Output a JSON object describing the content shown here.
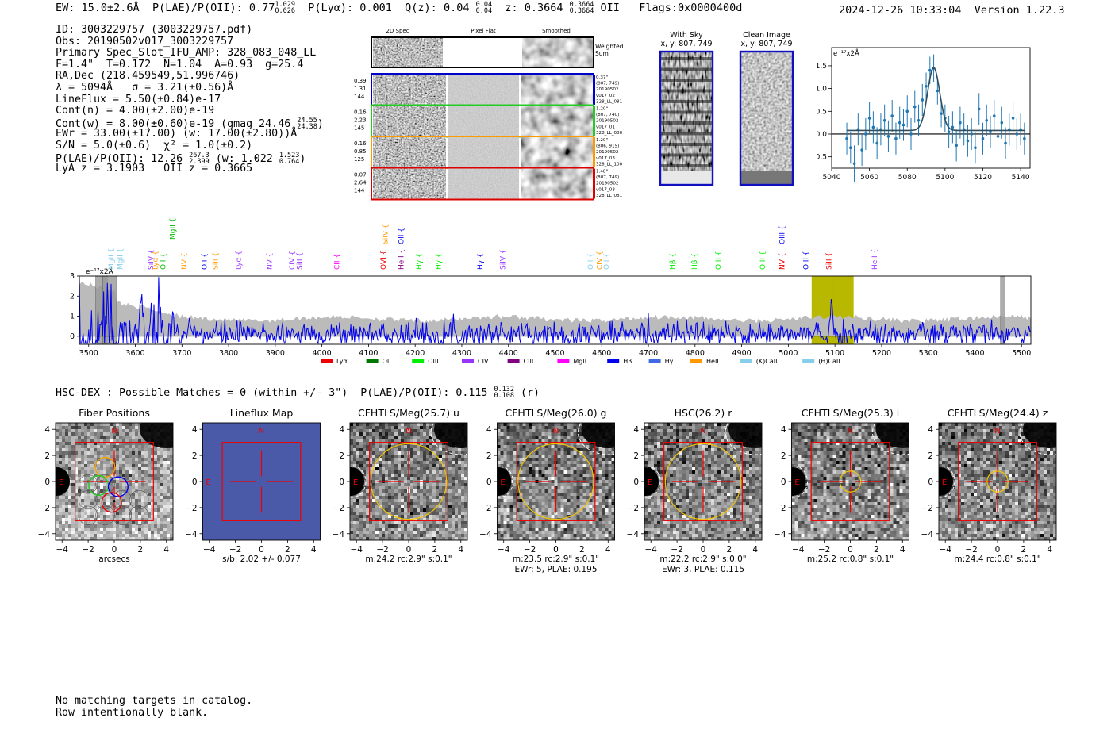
{
  "header": {
    "ew": "EW: 15.0±2.6Å",
    "plae_label": "P(LAE)/P(OII): 0.77",
    "plae_hi": "1.029",
    "plae_lo": "0.626",
    "plya": "P(Lyα): 0.001",
    "qz_label": "Q(z): 0.04",
    "qz_hi": "0.04",
    "qz_lo": "0.04",
    "z_label": "z: 0.3664",
    "z_hi": "0.3664",
    "z_lo": "0.3664",
    "z_line": "OII",
    "flags": "Flags:0x0000400d",
    "datetime": "2024-12-26 10:33:04",
    "version": "Version 1.22.3"
  },
  "info": {
    "id": "ID: 3003229757 (3003229757.pdf)",
    "obs": "Obs: 20190502v017_3003229757",
    "primary": "Primary Spec_Slot_IFU_AMP: 328_083_048_LL",
    "fiber": "F=1.4\"  T=0.172  N=1.04  A=0.93  g=25.4",
    "radec": "RA,Dec (218.459549,51.996746)",
    "lambda": "λ = 5094Å   σ = 3.21(±0.56)Å",
    "lineflux": "LineFlux = 5.50(±0.84)e-17",
    "contn": "Cont(n) = 4.00(±2.00)e-19",
    "contw": "Cont(w) = 8.00(±0.60)e-19 (gmag 24.46",
    "contw_hi": "24.55",
    "contw_lo": "24.38",
    "ewr": "EWr = 33.00(±17.00) (w: 17.00(±2.80))Å",
    "sn": "S/N = 5.0(±0.6)  χ² = 1.0(±0.2)",
    "plae": "P(LAE)/P(OII): 12.26",
    "plae_hi": "267.3",
    "plae_lo": "2.399",
    "plae_w": "(w: 1.022",
    "plae_w_hi": "1.523",
    "plae_w_lo": "0.764",
    "lya_z": "LyA z = 3.1903   OII z = 0.3665"
  },
  "cutouts": {
    "col_labels": [
      "2D Spec",
      "Pixel Flat",
      "Smoothed"
    ],
    "weighted_sum": [
      "Weighted",
      "Sum"
    ],
    "rows": [
      {
        "side": [
          "0.39",
          "1.31",
          "144"
        ],
        "info": [
          "0.37\"",
          "(807, 749)",
          "20190502",
          "v017_02",
          "328_LL_081"
        ],
        "color": "#0000cc"
      },
      {
        "side": [
          "0.16",
          "2.23",
          "145"
        ],
        "info": [
          "1.20\"",
          "(807, 740)",
          "20190502",
          "v017_01",
          "328_LL_080"
        ],
        "color": "#22cc22"
      },
      {
        "side": [
          "0.16",
          "0.85",
          "125"
        ],
        "info": [
          "1.20\"",
          "(806, 915)",
          "20190502",
          "v017_03",
          "328_LL_100"
        ],
        "color": "#ff9900"
      },
      {
        "side": [
          "0.07",
          "2.64",
          "144"
        ],
        "info": [
          "1.48\"",
          "(807, 749)",
          "20190502",
          "v017_03",
          "328_LL_081"
        ],
        "color": "#dd0000"
      }
    ]
  },
  "sky": {
    "with_sky_title": "With Sky",
    "with_sky_xy": "x, y: 807, 749",
    "clean_title": "Clean Image",
    "clean_xy": "x, y: 807, 749"
  },
  "chart_data": [
    {
      "type": "line",
      "title": "",
      "units": "e⁻¹⁷x2Å",
      "xlim": [
        5040,
        5145
      ],
      "ylim": [
        -0.75,
        1.9
      ],
      "xticks": [
        5040,
        5060,
        5080,
        5100,
        5120,
        5140
      ],
      "yticks": [
        -0.5,
        0.0,
        0.5,
        1.0,
        1.5
      ],
      "series": [
        {
          "name": "data",
          "x": [
            5048,
            5050,
            5052,
            5054,
            5056,
            5058,
            5060,
            5062,
            5064,
            5066,
            5068,
            5070,
            5072,
            5074,
            5076,
            5078,
            5080,
            5082,
            5084,
            5086,
            5088,
            5090,
            5092,
            5094,
            5096,
            5098,
            5100,
            5102,
            5104,
            5106,
            5108,
            5110,
            5112,
            5114,
            5116,
            5118,
            5120,
            5122,
            5124,
            5126,
            5128,
            5130,
            5132,
            5134,
            5136,
            5138,
            5140,
            5142
          ],
          "y": [
            -0.1,
            -0.3,
            -0.65,
            0.1,
            -0.35,
            0.0,
            0.35,
            0.15,
            -0.2,
            0.1,
            0.3,
            -0.05,
            0.4,
            -0.1,
            0.25,
            0.2,
            0.5,
            0.0,
            0.6,
            0.3,
            0.75,
            1.05,
            1.4,
            1.45,
            0.95,
            0.45,
            0.35,
            0.05,
            0.15,
            -0.25,
            0.25,
            0.1,
            -0.15,
            0.0,
            -0.3,
            0.55,
            -0.1,
            0.3,
            0.05,
            0.4,
            -0.05,
            0.25,
            -0.2,
            0.1,
            0.35,
            0.0,
            0.1,
            -0.1
          ],
          "err": [
            0.35,
            0.35,
            0.4,
            0.35,
            0.35,
            0.35,
            0.35,
            0.35,
            0.35,
            0.35,
            0.35,
            0.35,
            0.35,
            0.35,
            0.35,
            0.35,
            0.35,
            0.35,
            0.35,
            0.35,
            0.35,
            0.3,
            0.3,
            0.3,
            0.3,
            0.3,
            0.3,
            0.35,
            0.35,
            0.35,
            0.35,
            0.35,
            0.35,
            0.35,
            0.35,
            0.35,
            0.35,
            0.35,
            0.35,
            0.35,
            0.35,
            0.35,
            0.35,
            0.35,
            0.35,
            0.35,
            0.35,
            0.35
          ]
        },
        {
          "name": "fit",
          "center": 5094,
          "amp": 1.38,
          "sigma": 3.21,
          "baseline": 0.08
        }
      ]
    },
    {
      "type": "line",
      "title": "",
      "units": "e⁻¹⁷x2Å",
      "xlim": [
        3480,
        5520
      ],
      "ylim": [
        -0.4,
        3.0
      ],
      "xticks": [
        3500,
        3600,
        3700,
        3800,
        3900,
        4000,
        4100,
        4200,
        4300,
        4400,
        4500,
        4600,
        4700,
        4800,
        4900,
        5000,
        5100,
        5200,
        5300,
        5400,
        5500
      ],
      "yticks": [
        0,
        1,
        2,
        3
      ],
      "highlight": {
        "from": 5050,
        "to": 5140,
        "center": 5094
      },
      "masked": [
        [
          3515,
          3540
        ],
        [
          3530,
          3560
        ],
        [
          5455,
          5465
        ]
      ],
      "legend": [
        "Lyα",
        "OII",
        "OIII",
        "CIV",
        "CIII",
        "MgII",
        "Hβ",
        "Hγ",
        "HeII",
        "(K)CaII",
        "(H)CaII"
      ],
      "legend_colors": [
        "#ee0000",
        "#007700",
        "#00ee00",
        "#9933ff",
        "#800080",
        "#ff00ff",
        "#0000ee",
        "#4169e1",
        "#ff9900",
        "#87ceeb",
        "#87ceeb"
      ],
      "lines": [
        {
          "label": "MgII",
          "x": 3553,
          "row": "low",
          "color": "#87ceeb"
        },
        {
          "label": "MgII",
          "x": 3573,
          "row": "low",
          "color": "#87ceeb"
        },
        {
          "label": "SiIV",
          "x": 3638,
          "row": "low",
          "color": "#9933ff"
        },
        {
          "label": "Lyα",
          "x": 3648,
          "row": "low",
          "color": "#ff9900"
        },
        {
          "label": "OII",
          "x": 3665,
          "row": "low",
          "color": "#00bb00"
        },
        {
          "label": "MgII",
          "x": 3685,
          "row": "mid",
          "color": "#00bb00"
        },
        {
          "label": "NV",
          "x": 3710,
          "row": "low",
          "color": "#ff9900"
        },
        {
          "label": "OII",
          "x": 3753,
          "row": "low",
          "color": "#0000ee"
        },
        {
          "label": "SiII",
          "x": 3777,
          "row": "low",
          "color": "#ff9900"
        },
        {
          "label": "Lyα",
          "x": 3826,
          "row": "low",
          "color": "#9933ff"
        },
        {
          "label": "NV",
          "x": 3893,
          "row": "low",
          "color": "#9933ff"
        },
        {
          "label": "CIV",
          "x": 3941,
          "row": "low",
          "color": "#9933ff"
        },
        {
          "label": "SiII",
          "x": 3957,
          "row": "low",
          "color": "#9933ff"
        },
        {
          "label": "CII",
          "x": 4037,
          "row": "low",
          "color": "#ff00ff"
        },
        {
          "label": "SiIV",
          "x": 4141,
          "row": "top",
          "color": "#ff9900"
        },
        {
          "label": "OVI",
          "x": 4137,
          "row": "low",
          "color": "#ee0000"
        },
        {
          "label": "OII",
          "x": 4175,
          "row": "top",
          "color": "#0000ee"
        },
        {
          "label": "HeII",
          "x": 4175,
          "row": "low",
          "color": "#800080"
        },
        {
          "label": "Hγ",
          "x": 4213,
          "row": "low",
          "color": "#00ee00"
        },
        {
          "label": "Hγ",
          "x": 4255,
          "row": "low",
          "color": "#00ee00"
        },
        {
          "label": "Hγ",
          "x": 4344,
          "row": "low",
          "color": "#0000ee"
        },
        {
          "label": "SiIV",
          "x": 4393,
          "row": "low",
          "color": "#9933ff"
        },
        {
          "label": "OII",
          "x": 4581,
          "row": "low",
          "color": "#87ceeb"
        },
        {
          "label": "CIV",
          "x": 4600,
          "row": "low",
          "color": "#ff9900"
        },
        {
          "label": "OII",
          "x": 4615,
          "row": "low",
          "color": "#87ceeb"
        },
        {
          "label": "Hβ",
          "x": 4757,
          "row": "low",
          "color": "#00ee00"
        },
        {
          "label": "Hβ",
          "x": 4804,
          "row": "low",
          "color": "#00ee00"
        },
        {
          "label": "OIII",
          "x": 4855,
          "row": "low",
          "color": "#00ee00"
        },
        {
          "label": "OIII",
          "x": 4950,
          "row": "low",
          "color": "#00ee00"
        },
        {
          "label": "NV",
          "x": 4992,
          "row": "low",
          "color": "#ee0000"
        },
        {
          "label": "OIII",
          "x": 4992,
          "row": "top",
          "color": "#0000ee"
        },
        {
          "label": "OIII",
          "x": 5043,
          "row": "low",
          "color": "#0000ee"
        },
        {
          "label": "SiII",
          "x": 5092,
          "row": "low",
          "color": "#ee0000"
        },
        {
          "label": "HeII",
          "x": 5190,
          "row": "low",
          "color": "#9933ff"
        }
      ]
    }
  ],
  "hsc": {
    "summary": "HSC-DEX : Possible Matches = 0 (within +/- 3\")  P(LAE)/P(OII): 0.115",
    "summary_hi": "0.132",
    "summary_lo": "0.108",
    "summary_band": "(r)",
    "panels": [
      {
        "title": "Fiber Positions",
        "caption1": "arcsecs",
        "caption2": "",
        "circle_r": 0,
        "colors": true
      },
      {
        "title": "Lineflux Map",
        "caption1": "s/b: 2.02 +/- 0.077",
        "caption2": "",
        "circle_r": 0,
        "colors": false
      },
      {
        "title": "CFHTLS/Meg(25.7) u",
        "caption1": "m:24.2 rc:2.9\"  s:0.1\"",
        "caption2": "",
        "circle_r": 2.9,
        "colors": false
      },
      {
        "title": "CFHTLS/Meg(26.0) g",
        "caption1": "m:23.5 rc:2.9\"  s:0.1\"",
        "caption2": "EWr: 5, PLAE: 0.195",
        "circle_r": 2.9,
        "colors": false
      },
      {
        "title": "HSC(26.2) r",
        "caption1": "m:22.2 rc:2.9\"  s:0.0\"",
        "caption2": "EWr: 3, PLAE: 0.115",
        "circle_r": 2.9,
        "colors": false
      },
      {
        "title": "CFHTLS/Meg(25.3) i",
        "caption1": "m:25.2 rc:0.8\"  s:0.1\"",
        "caption2": "",
        "circle_r": 0.8,
        "colors": false
      },
      {
        "title": "CFHTLS/Meg(24.4) z",
        "caption1": "m:24.4 rc:0.8\"  s:0.1\"",
        "caption2": "",
        "circle_r": 0.8,
        "colors": false
      }
    ],
    "north": "N",
    "east": "E",
    "ticks": [
      "−4",
      "−2",
      "0",
      "2",
      "4"
    ]
  },
  "footer": {
    "line1": "No matching targets in catalog.",
    "line2": "Row intentionally blank."
  }
}
